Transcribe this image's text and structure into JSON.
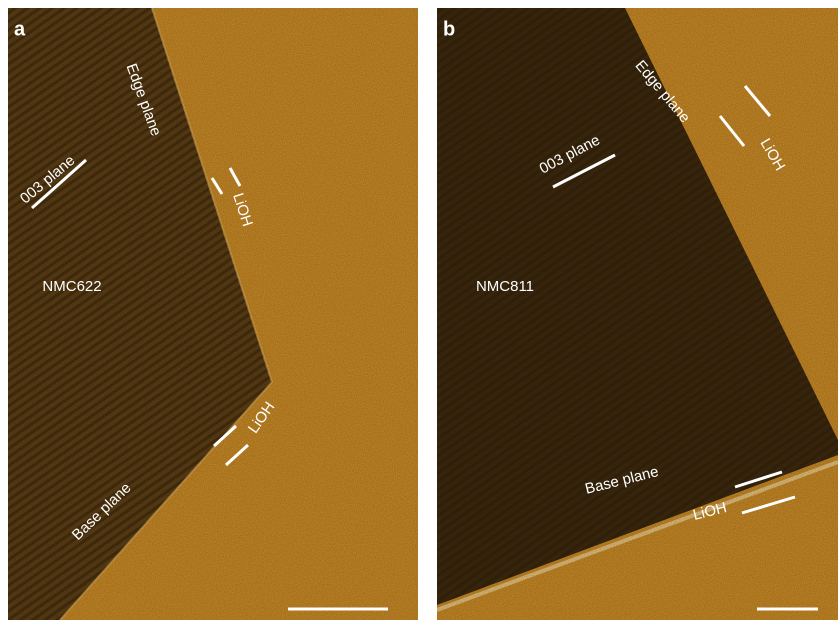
{
  "panels": [
    {
      "letter": "a",
      "labels": {
        "edge_plane": "Edge plane",
        "plane_003": "003 plane",
        "lioh_edge": "LiOH",
        "material": "NMC622",
        "lioh_base": "LiOH",
        "base_plane": "Base plane"
      }
    },
    {
      "letter": "b",
      "labels": {
        "edge_plane": "Edge plane",
        "plane_003": "003 plane",
        "lioh_edge": "LiOH",
        "material": "NMC811",
        "base_plane": "Base plane",
        "lioh_base": "LiOH"
      }
    }
  ]
}
